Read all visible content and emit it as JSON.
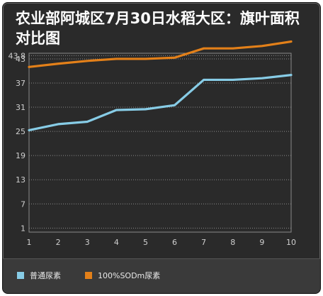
{
  "chart_data": {
    "type": "line",
    "title": "农业部阿城区7月30日水稻大区：旗叶面积对比图",
    "x": [
      1,
      2,
      3,
      4,
      5,
      6,
      7,
      8,
      9,
      10
    ],
    "y_ticks": [
      1,
      7,
      13,
      19,
      25,
      31,
      37,
      43,
      43.8
    ],
    "ylim": [
      0,
      44.4
    ],
    "grid": true,
    "legend_position": "bottom",
    "series": [
      {
        "name": "普通尿素",
        "color": "#87cce6",
        "values": [
          25.3,
          26.8,
          27.4,
          30.3,
          30.5,
          31.5,
          37.8,
          37.8,
          38.2,
          39.0
        ]
      },
      {
        "name": "100%SODm尿素",
        "color": "#e38019",
        "values": [
          41.0,
          41.8,
          42.5,
          43.0,
          43.0,
          43.3,
          45.6,
          45.6,
          46.2,
          47.3
        ]
      }
    ]
  }
}
